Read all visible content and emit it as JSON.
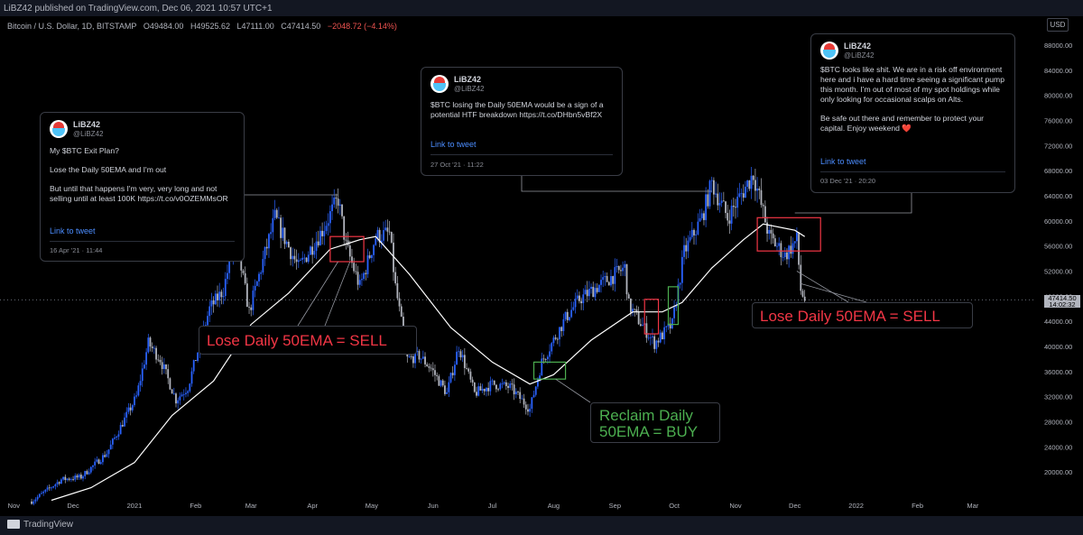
{
  "header": {
    "published": "LiBZ42 published on TradingView.com, Dec 06, 2021 10:57 UTC+1",
    "symbol": "Bitcoin / U.S. Dollar, 1D, BITSTAMP",
    "open": "O49484.00",
    "high": "H49525.62",
    "low": "L47111.00",
    "close": "C47414.50",
    "change": "−2048.72 (−4.14%)",
    "currency": "USD"
  },
  "footer": {
    "brand": "TradingView"
  },
  "price_labels": {
    "last": "47414.50",
    "countdown": "14:02:32"
  },
  "tweets": [
    {
      "name": "LiBZ42",
      "handle": "@LiBZ42",
      "paragraphs": [
        "My $BTC Exit Plan?",
        "Lose the Daily 50EMA and I'm out",
        "But until that happens I'm very, very long and not selling until at least 100K https://t.co/v0OZEMMsOR"
      ],
      "link": "Link to tweet",
      "date": "16 Apr '21 · 11:44"
    },
    {
      "name": "LiBZ42",
      "handle": "@LiBZ42",
      "paragraphs": [
        "$BTC losing the Daily 50EMA would be a sign of a potential HTF breakdown https://t.co/DHbn5vBf2X"
      ],
      "link": "Link to tweet",
      "date": "27 Oct '21 · 11:22"
    },
    {
      "name": "LiBZ42",
      "handle": "@LiBZ42",
      "paragraphs": [
        "$BTC looks like shit. We are in a risk off environment here and i have a hard time seeing a significant pump this month. I'm out of most of my spot holdings while only looking for occasional scalps on Alts.",
        "Be safe out there and remember to protect your capital. Enjoy weekend ❤️"
      ],
      "link": "Link to tweet",
      "date": "03 Dec '21 · 20:20"
    }
  ],
  "annotations": {
    "sell_left": "Lose Daily 50EMA = SELL",
    "buy": "Reclaim Daily 50EMA = BUY",
    "sell_right": "Lose Daily 50EMA = SELL"
  },
  "colors": {
    "up": "#2962ff",
    "down": "#b2b5be",
    "ema": "#ffffff",
    "sell": "#f23645",
    "buy": "#4caf50",
    "background": "#000000"
  },
  "chart_data": {
    "type": "candlestick",
    "ylim": [
      16000,
      90000
    ],
    "yticks": [
      20000,
      24000,
      28000,
      32000,
      36000,
      40000,
      44000,
      48000,
      52000,
      56000,
      60000,
      64000,
      68000,
      72000,
      76000,
      80000,
      84000,
      88000
    ],
    "ytick_labels": [
      "20000.00",
      "24000.00",
      "28000.00",
      "32000.00",
      "36000.00",
      "40000.00",
      "44000.00",
      "48000.00",
      "52000.00",
      "56000.00",
      "60000.00",
      "64000.00",
      "68000.00",
      "72000.00",
      "76000.00",
      "80000.00",
      "84000.00",
      "88000.00"
    ],
    "xlim": [
      "2020-10-25",
      "2022-04-02"
    ],
    "xticks": [
      {
        "date": "2020-11-01",
        "label": "Nov"
      },
      {
        "date": "2020-12-01",
        "label": "Dec"
      },
      {
        "date": "2021-01-01",
        "label": "2021"
      },
      {
        "date": "2021-02-01",
        "label": "Feb"
      },
      {
        "date": "2021-03-01",
        "label": "Mar"
      },
      {
        "date": "2021-04-01",
        "label": "Apr"
      },
      {
        "date": "2021-05-01",
        "label": "May"
      },
      {
        "date": "2021-06-01",
        "label": "Jun"
      },
      {
        "date": "2021-07-01",
        "label": "Jul"
      },
      {
        "date": "2021-08-01",
        "label": "Aug"
      },
      {
        "date": "2021-09-01",
        "label": "Sep"
      },
      {
        "date": "2021-10-01",
        "label": "Oct"
      },
      {
        "date": "2021-11-01",
        "label": "Nov"
      },
      {
        "date": "2021-12-01",
        "label": "Dec"
      },
      {
        "date": "2022-01-01",
        "label": "2022"
      },
      {
        "date": "2022-02-01",
        "label": "Feb"
      },
      {
        "date": "2022-03-01",
        "label": "Mar"
      }
    ],
    "price_path": [
      [
        "2020-11-10",
        15300
      ],
      [
        "2020-11-25",
        18800
      ],
      [
        "2020-12-05",
        19200
      ],
      [
        "2020-12-18",
        23000
      ],
      [
        "2021-01-02",
        32000
      ],
      [
        "2021-01-08",
        40500
      ],
      [
        "2021-01-14",
        38000
      ],
      [
        "2021-01-22",
        31500
      ],
      [
        "2021-01-28",
        33500
      ],
      [
        "2021-02-08",
        46000
      ],
      [
        "2021-02-15",
        49000
      ],
      [
        "2021-02-21",
        57500
      ],
      [
        "2021-02-28",
        45500
      ],
      [
        "2021-03-13",
        60500
      ],
      [
        "2021-03-25",
        52500
      ],
      [
        "2021-04-06",
        58500
      ],
      [
        "2021-04-14",
        63500
      ],
      [
        "2021-04-18",
        56000
      ],
      [
        "2021-04-25",
        49500
      ],
      [
        "2021-05-03",
        57500
      ],
      [
        "2021-05-10",
        58000
      ],
      [
        "2021-05-13",
        49500
      ],
      [
        "2021-05-19",
        38000
      ],
      [
        "2021-05-25",
        38500
      ],
      [
        "2021-05-31",
        36500
      ],
      [
        "2021-06-08",
        32500
      ],
      [
        "2021-06-14",
        40000
      ],
      [
        "2021-06-22",
        32500
      ],
      [
        "2021-07-01",
        34000
      ],
      [
        "2021-07-10",
        33500
      ],
      [
        "2021-07-20",
        30000
      ],
      [
        "2021-07-26",
        37500
      ],
      [
        "2021-08-07",
        44500
      ],
      [
        "2021-08-14",
        47500
      ],
      [
        "2021-08-23",
        49500
      ],
      [
        "2021-09-06",
        52500
      ],
      [
        "2021-09-08",
        46500
      ],
      [
        "2021-09-21",
        40500
      ],
      [
        "2021-09-30",
        43500
      ],
      [
        "2021-10-06",
        55000
      ],
      [
        "2021-10-15",
        60500
      ],
      [
        "2021-10-20",
        66000
      ],
      [
        "2021-10-28",
        60500
      ],
      [
        "2021-11-10",
        67500
      ],
      [
        "2021-11-18",
        57500
      ],
      [
        "2021-11-26",
        54500
      ],
      [
        "2021-12-02",
        57000
      ],
      [
        "2021-12-04",
        49000
      ],
      [
        "2021-12-06",
        47414
      ]
    ],
    "ema50_path": [
      [
        "2020-11-20",
        15500
      ],
      [
        "2020-12-10",
        17500
      ],
      [
        "2021-01-01",
        21500
      ],
      [
        "2021-01-20",
        29000
      ],
      [
        "2021-02-10",
        34500
      ],
      [
        "2021-03-01",
        43500
      ],
      [
        "2021-03-20",
        48500
      ],
      [
        "2021-04-10",
        55500
      ],
      [
        "2021-04-25",
        57000
      ],
      [
        "2021-05-03",
        57500
      ],
      [
        "2021-05-20",
        51500
      ],
      [
        "2021-06-10",
        43000
      ],
      [
        "2021-07-01",
        37500
      ],
      [
        "2021-07-20",
        34000
      ],
      [
        "2021-08-01",
        35500
      ],
      [
        "2021-08-20",
        41000
      ],
      [
        "2021-09-10",
        45500
      ],
      [
        "2021-09-25",
        45500
      ],
      [
        "2021-10-05",
        47000
      ],
      [
        "2021-10-20",
        52500
      ],
      [
        "2021-11-05",
        57000
      ],
      [
        "2021-11-15",
        59500
      ],
      [
        "2021-12-01",
        58500
      ],
      [
        "2021-12-06",
        57500
      ]
    ],
    "box_marks": [
      {
        "color": "red",
        "start": "2021-04-10",
        "end": "2021-04-27",
        "low": 53500,
        "high": 57500
      },
      {
        "color": "green",
        "start": "2021-07-22",
        "end": "2021-08-07",
        "low": 34800,
        "high": 37500
      },
      {
        "color": "red",
        "start": "2021-09-16",
        "end": "2021-09-23",
        "low": 42000,
        "high": 47500
      },
      {
        "color": "green",
        "start": "2021-09-28",
        "end": "2021-10-03",
        "low": 43500,
        "high": 49500
      },
      {
        "color": "red",
        "start": "2021-11-12",
        "end": "2021-12-14",
        "low": 55200,
        "high": 60500
      }
    ]
  }
}
